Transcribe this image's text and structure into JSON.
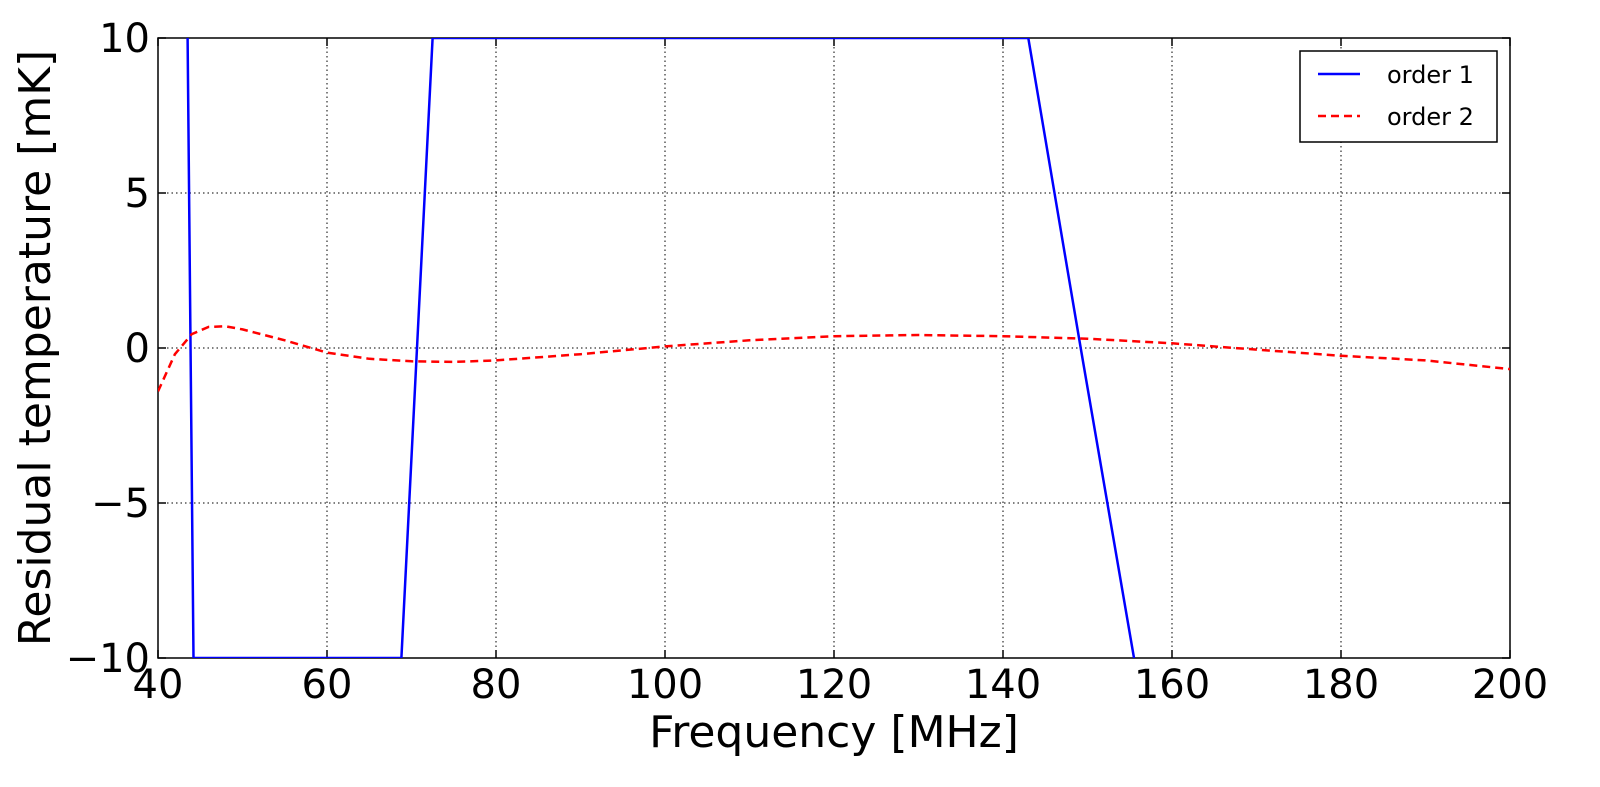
{
  "chart_data": {
    "type": "line",
    "title": "",
    "xlabel": "Frequency [MHz]",
    "ylabel": "Residual temperature [mK]",
    "xlim": [
      40,
      200
    ],
    "ylim": [
      -10,
      10
    ],
    "xticks": [
      40,
      60,
      80,
      100,
      120,
      140,
      160,
      180,
      200
    ],
    "xtick_labels": [
      "40",
      "60",
      "80",
      "100",
      "120",
      "140",
      "160",
      "180",
      "200"
    ],
    "yticks": [
      10,
      5,
      0,
      -5,
      -10
    ],
    "ytick_labels": [
      "10",
      "5",
      "0",
      "−5",
      "−10"
    ],
    "grid": true,
    "legend_position": "top-right",
    "series": [
      {
        "name": "order 1",
        "color": "#0000ff",
        "style": "solid",
        "x": [
          43.5,
          44.2,
          68.8,
          72.5,
          143.0,
          149.2,
          155.5
        ],
        "y": [
          10,
          -10,
          -10,
          10,
          10,
          0,
          -10
        ]
      },
      {
        "name": "order 2",
        "color": "#ff0000",
        "style": "dashed",
        "x": [
          40,
          42,
          44,
          46,
          48,
          50,
          55,
          60,
          65,
          70,
          75,
          80,
          90,
          100,
          110,
          120,
          130,
          140,
          150,
          160,
          170,
          180,
          190,
          200
        ],
        "y": [
          -1.4,
          -0.2,
          0.45,
          0.68,
          0.7,
          0.6,
          0.25,
          -0.15,
          -0.35,
          -0.43,
          -0.45,
          -0.4,
          -0.2,
          0.05,
          0.25,
          0.38,
          0.42,
          0.38,
          0.3,
          0.15,
          -0.05,
          -0.25,
          -0.4,
          -0.68
        ]
      }
    ]
  }
}
